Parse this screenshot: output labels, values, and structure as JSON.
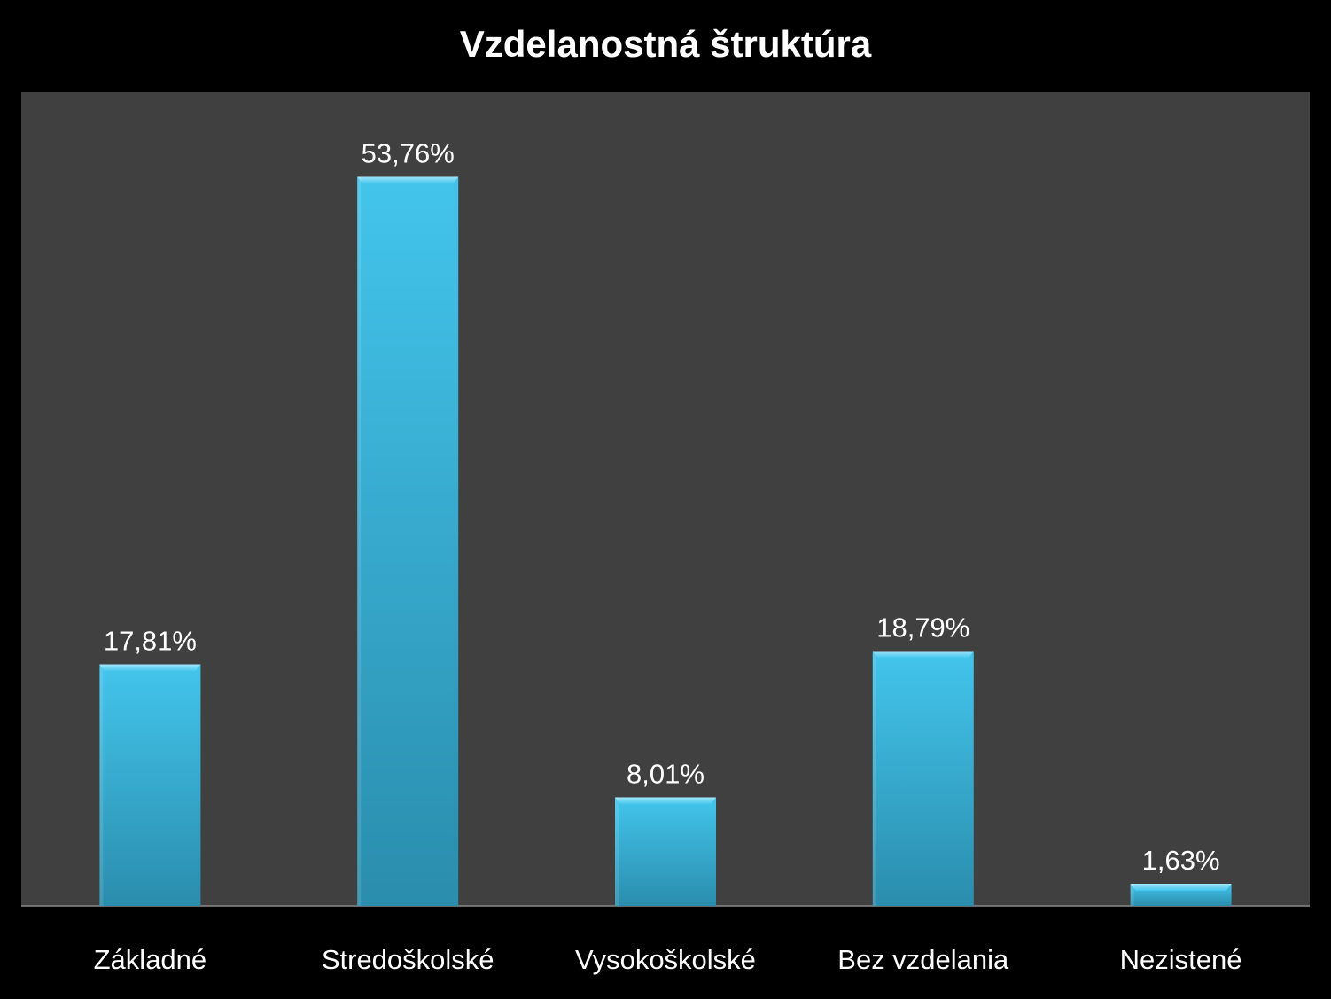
{
  "chart_data": {
    "type": "bar",
    "title": "Vzdelanostná štruktúra",
    "categories": [
      "Základné",
      "Stredoškolské",
      "Vysokoškolské",
      "Bez vzdelania",
      "Nezistené"
    ],
    "values": [
      17.81,
      53.76,
      8.01,
      18.79,
      1.63
    ],
    "value_labels": [
      "17,81%",
      "53,76%",
      "8,01%",
      "18,79%",
      "1,63%"
    ],
    "xlabel": "",
    "ylabel": "",
    "ylim": [
      0,
      60
    ],
    "grid": false,
    "legend": "none",
    "colors": {
      "background": "#000000",
      "plot_area": "#404040",
      "bar_top": "#43C5EC",
      "bar_bottom": "#2A8DAD",
      "text": "#FFFFFF"
    }
  }
}
